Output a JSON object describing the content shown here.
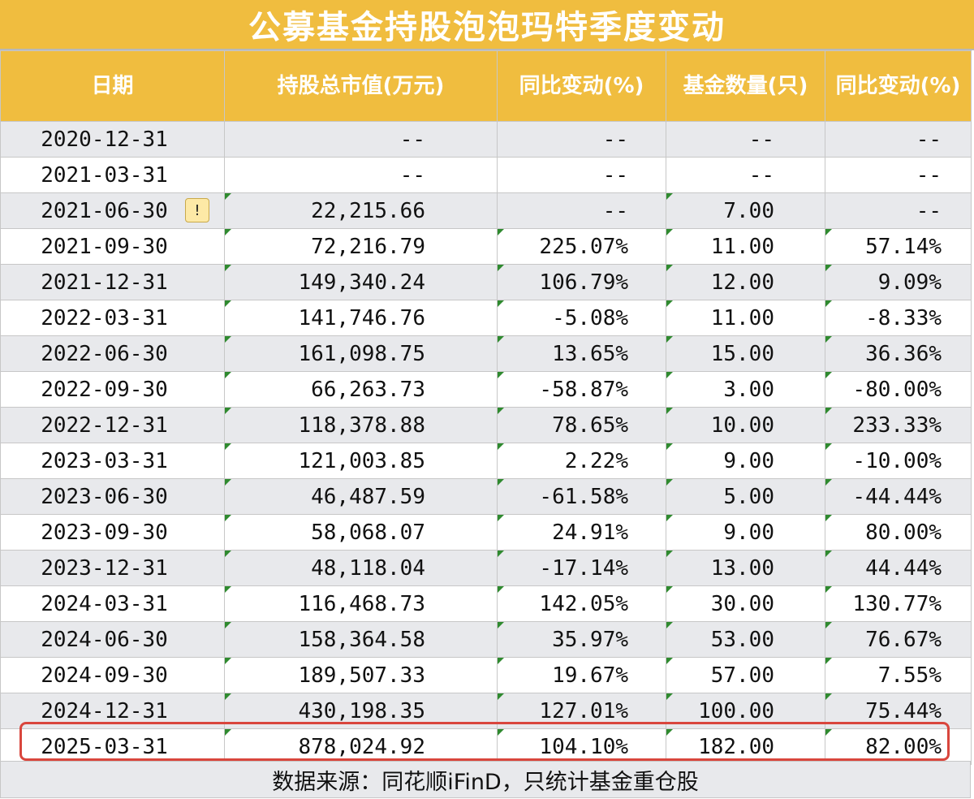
{
  "title": "公募基金持股泡泡玛特季度变动",
  "headers": [
    "日期",
    "持股总市值(万元)",
    "同比变动(%)",
    "基金数量(只)",
    "同比变动(%)"
  ],
  "rows": [
    {
      "date": "2020-12-31",
      "value": "--",
      "yoy": "--",
      "funds": "--",
      "funds_yoy": "--"
    },
    {
      "date": "2021-03-31",
      "value": "--",
      "yoy": "--",
      "funds": "--",
      "funds_yoy": "--"
    },
    {
      "date": "2021-06-30",
      "value": "22,215.66",
      "yoy": "--",
      "funds": "7.00",
      "funds_yoy": "--"
    },
    {
      "date": "2021-09-30",
      "value": "72,216.79",
      "yoy": "225.07%",
      "funds": "11.00",
      "funds_yoy": "57.14%"
    },
    {
      "date": "2021-12-31",
      "value": "149,340.24",
      "yoy": "106.79%",
      "funds": "12.00",
      "funds_yoy": "9.09%"
    },
    {
      "date": "2022-03-31",
      "value": "141,746.76",
      "yoy": "-5.08%",
      "funds": "11.00",
      "funds_yoy": "-8.33%"
    },
    {
      "date": "2022-06-30",
      "value": "161,098.75",
      "yoy": "13.65%",
      "funds": "15.00",
      "funds_yoy": "36.36%"
    },
    {
      "date": "2022-09-30",
      "value": "66,263.73",
      "yoy": "-58.87%",
      "funds": "3.00",
      "funds_yoy": "-80.00%"
    },
    {
      "date": "2022-12-31",
      "value": "118,378.88",
      "yoy": "78.65%",
      "funds": "10.00",
      "funds_yoy": "233.33%"
    },
    {
      "date": "2023-03-31",
      "value": "121,003.85",
      "yoy": "2.22%",
      "funds": "9.00",
      "funds_yoy": "-10.00%"
    },
    {
      "date": "2023-06-30",
      "value": "46,487.59",
      "yoy": "-61.58%",
      "funds": "5.00",
      "funds_yoy": "-44.44%"
    },
    {
      "date": "2023-09-30",
      "value": "58,068.07",
      "yoy": "24.91%",
      "funds": "9.00",
      "funds_yoy": "80.00%"
    },
    {
      "date": "2023-12-31",
      "value": "48,118.04",
      "yoy": "-17.14%",
      "funds": "13.00",
      "funds_yoy": "44.44%"
    },
    {
      "date": "2024-03-31",
      "value": "116,468.73",
      "yoy": "142.05%",
      "funds": "30.00",
      "funds_yoy": "130.77%"
    },
    {
      "date": "2024-06-30",
      "value": "158,364.58",
      "yoy": "35.97%",
      "funds": "53.00",
      "funds_yoy": "76.67%"
    },
    {
      "date": "2024-09-30",
      "value": "189,507.33",
      "yoy": "19.67%",
      "funds": "57.00",
      "funds_yoy": "7.55%"
    },
    {
      "date": "2024-12-31",
      "value": "430,198.35",
      "yoy": "127.01%",
      "funds": "100.00",
      "funds_yoy": "75.44%"
    },
    {
      "date": "2025-03-31",
      "value": "878,024.92",
      "yoy": "104.10%",
      "funds": "182.00",
      "funds_yoy": "82.00%"
    }
  ],
  "warning_icon": "warning-icon",
  "source": "数据来源：同花顺iFinD，只统计基金重仓股",
  "colors": {
    "header_bg": "#f0bd3f",
    "highlight": "#d9463d",
    "row_alt": "#e8e9ec"
  }
}
